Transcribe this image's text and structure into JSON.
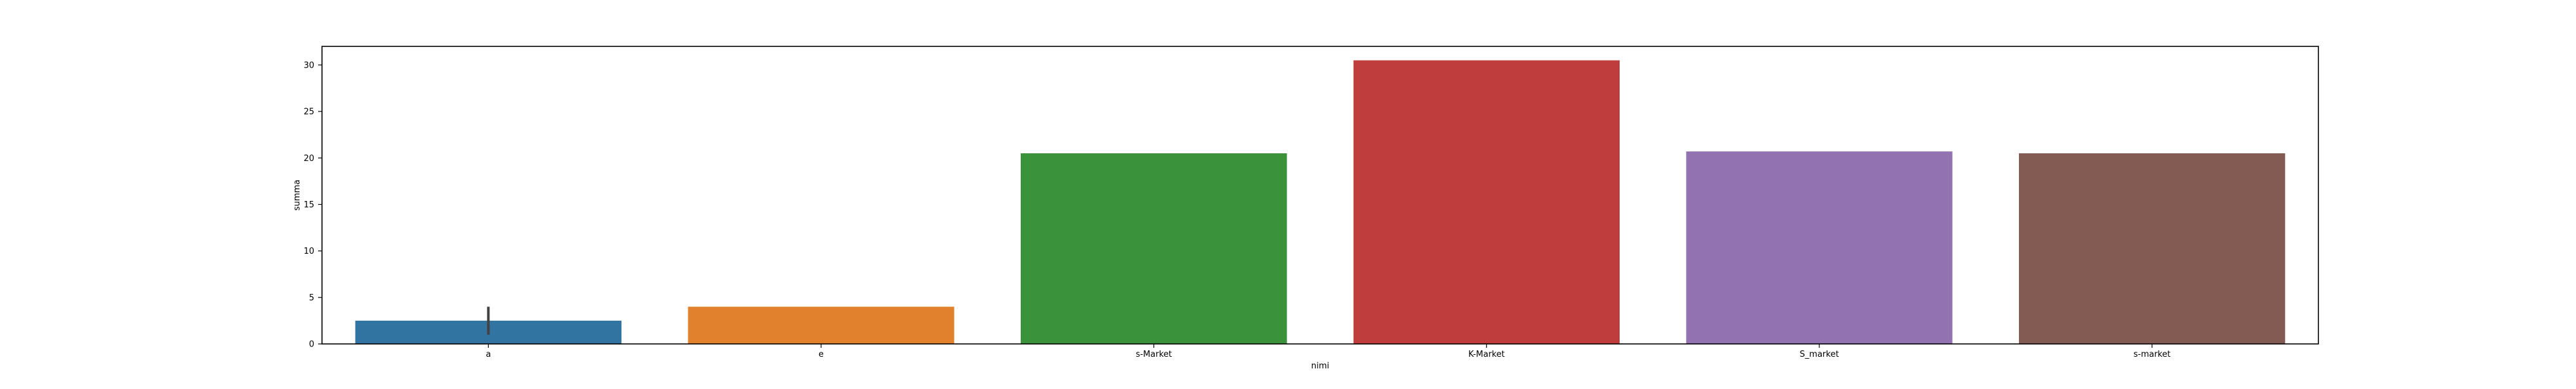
{
  "chart_data": {
    "type": "bar",
    "categories": [
      "a",
      "e",
      "s-Market",
      "K-Market",
      "S_market",
      "s-market"
    ],
    "values": [
      2.5,
      4.0,
      20.5,
      30.5,
      20.7,
      20.5
    ],
    "error_bars": [
      {
        "category": "a",
        "low": 1.0,
        "high": 4.0
      },
      {
        "category": "e",
        "low": 4.0,
        "high": 4.0
      },
      {
        "category": "s-Market",
        "low": 20.5,
        "high": 20.5
      },
      {
        "category": "K-Market",
        "low": 30.5,
        "high": 30.5
      },
      {
        "category": "S_market",
        "low": 20.7,
        "high": 20.7
      },
      {
        "category": "s-market",
        "low": 20.5,
        "high": 20.5
      }
    ],
    "colors": [
      "#3274a1",
      "#e1812c",
      "#3a923a",
      "#c03d3e",
      "#9372b2",
      "#845b53"
    ],
    "xlabel": "nimi",
    "ylabel": "summa",
    "ylim": [
      0,
      32
    ],
    "yticks": [
      0,
      5,
      10,
      15,
      20,
      25,
      30
    ],
    "grid": false
  }
}
